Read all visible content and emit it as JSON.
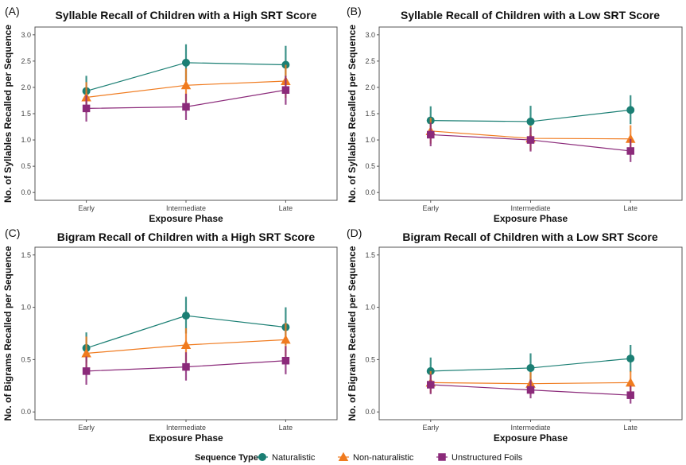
{
  "colors": {
    "Naturalistic": "#1b7f74",
    "Non-naturalistic": "#f07b1f",
    "Unstructured Foils": "#8b2a7a",
    "axis": "#555555"
  },
  "legend": {
    "title": "Sequence Type",
    "placement": "bottom",
    "entries": [
      {
        "name": "Naturalistic",
        "marker": "circle"
      },
      {
        "name": "Non-naturalistic",
        "marker": "triangle"
      },
      {
        "name": "Unstructured Foils",
        "marker": "square"
      }
    ]
  },
  "chart_data": [
    {
      "type": "line",
      "panel_label": "(A)",
      "title": "Syllable Recall of Children with a High SRT Score",
      "xlabel": "Exposure Phase",
      "ylabel": "No. of Syllables Recalled per Sequence",
      "categories": [
        "Early",
        "Intermediate",
        "Late"
      ],
      "ylim": [
        0,
        3.0
      ],
      "yticks": [
        "0.0",
        "0.5",
        "1.0",
        "1.5",
        "2.0",
        "2.5",
        "3.0"
      ],
      "series": [
        {
          "name": "Naturalistic",
          "values": [
            1.93,
            2.47,
            2.43
          ],
          "err_low": [
            1.65,
            2.12,
            2.07
          ],
          "err_high": [
            2.22,
            2.82,
            2.79
          ]
        },
        {
          "name": "Non-naturalistic",
          "values": [
            1.81,
            2.04,
            2.12
          ],
          "err_low": [
            1.52,
            1.72,
            1.8
          ],
          "err_high": [
            2.1,
            2.36,
            2.43
          ]
        },
        {
          "name": "Unstructured Foils",
          "values": [
            1.6,
            1.63,
            1.95
          ],
          "err_low": [
            1.35,
            1.38,
            1.67
          ],
          "err_high": [
            1.85,
            1.88,
            2.22
          ]
        }
      ]
    },
    {
      "type": "line",
      "panel_label": "(B)",
      "title": "Syllable Recall of Children with a Low SRT Score",
      "xlabel": "Exposure Phase",
      "ylabel": "No. of Syllables Recalled per Sequence",
      "categories": [
        "Early",
        "Intermediate",
        "Late"
      ],
      "ylim": [
        0,
        3.0
      ],
      "yticks": [
        "0.0",
        "0.5",
        "1.0",
        "1.5",
        "2.0",
        "2.5",
        "3.0"
      ],
      "series": [
        {
          "name": "Naturalistic",
          "values": [
            1.37,
            1.35,
            1.57
          ],
          "err_low": [
            1.12,
            1.08,
            1.3
          ],
          "err_high": [
            1.64,
            1.65,
            1.85
          ]
        },
        {
          "name": "Non-naturalistic",
          "values": [
            1.17,
            1.03,
            1.02
          ],
          "err_low": [
            0.93,
            0.8,
            0.78
          ],
          "err_high": [
            1.42,
            1.27,
            1.28
          ]
        },
        {
          "name": "Unstructured Foils",
          "values": [
            1.1,
            1.0,
            0.79
          ],
          "err_low": [
            0.88,
            0.78,
            0.58
          ],
          "err_high": [
            1.33,
            1.24,
            1.02
          ]
        }
      ]
    },
    {
      "type": "line",
      "panel_label": "(C)",
      "title": "Bigram Recall of Children with a High SRT Score",
      "xlabel": "Exposure Phase",
      "ylabel": "No. of Bigrams Recalled per Sequence",
      "categories": [
        "Early",
        "Intermediate",
        "Late"
      ],
      "ylim": [
        0,
        1.5
      ],
      "yticks": [
        "0.0",
        "0.5",
        "1.0",
        "1.5"
      ],
      "series": [
        {
          "name": "Naturalistic",
          "values": [
            0.61,
            0.92,
            0.81
          ],
          "err_low": [
            0.47,
            0.75,
            0.64
          ],
          "err_high": [
            0.76,
            1.1,
            1.0
          ]
        },
        {
          "name": "Non-naturalistic",
          "values": [
            0.56,
            0.64,
            0.69
          ],
          "err_low": [
            0.41,
            0.48,
            0.53
          ],
          "err_high": [
            0.72,
            0.8,
            0.85
          ]
        },
        {
          "name": "Unstructured Foils",
          "values": [
            0.39,
            0.43,
            0.49
          ],
          "err_low": [
            0.26,
            0.3,
            0.36
          ],
          "err_high": [
            0.53,
            0.57,
            0.63
          ]
        }
      ]
    },
    {
      "type": "line",
      "panel_label": "(D)",
      "title": "Bigram Recall of Children with a Low SRT Score",
      "xlabel": "Exposure Phase",
      "ylabel": "No. of Bigrams Recalled per Sequence",
      "categories": [
        "Early",
        "Intermediate",
        "Late"
      ],
      "ylim": [
        0,
        1.5
      ],
      "yticks": [
        "0.0",
        "0.5",
        "1.0",
        "1.5"
      ],
      "series": [
        {
          "name": "Naturalistic",
          "values": [
            0.39,
            0.42,
            0.51
          ],
          "err_low": [
            0.26,
            0.29,
            0.38
          ],
          "err_high": [
            0.52,
            0.56,
            0.64
          ]
        },
        {
          "name": "Non-naturalistic",
          "values": [
            0.28,
            0.27,
            0.28
          ],
          "err_low": [
            0.18,
            0.17,
            0.18
          ],
          "err_high": [
            0.39,
            0.38,
            0.39
          ]
        },
        {
          "name": "Unstructured Foils",
          "values": [
            0.26,
            0.21,
            0.16
          ],
          "err_low": [
            0.17,
            0.13,
            0.08
          ],
          "err_high": [
            0.36,
            0.31,
            0.25
          ]
        }
      ]
    }
  ]
}
